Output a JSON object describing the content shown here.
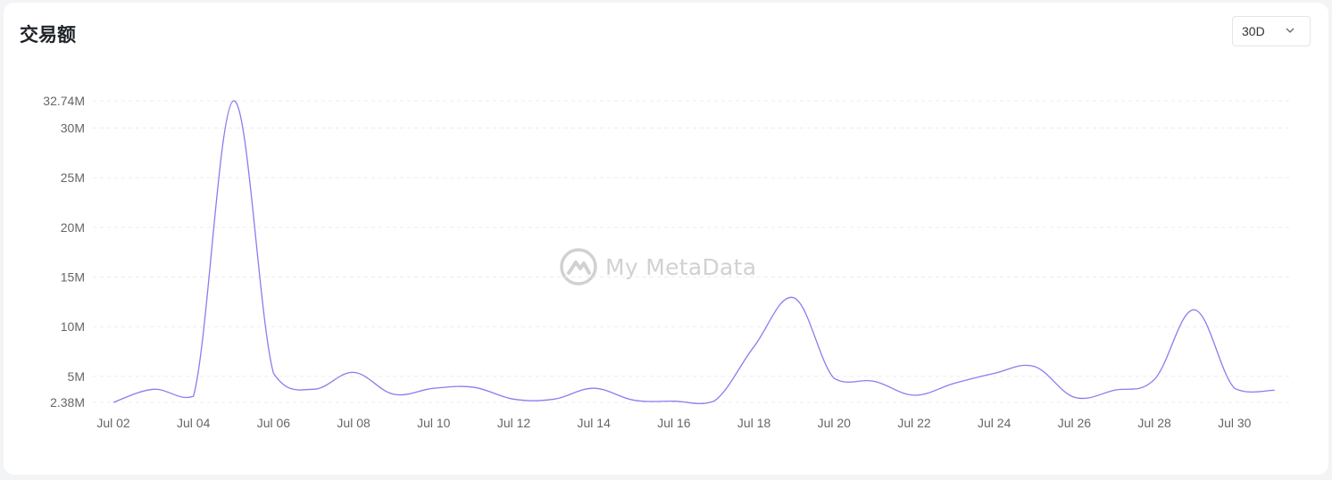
{
  "header": {
    "title": "交易额",
    "period": {
      "selected": "30D"
    }
  },
  "watermark": {
    "text": "My MetaData"
  },
  "colors": {
    "line": "#8b7cf0",
    "grid": "#ececec",
    "tick": "#666666"
  },
  "icons": {
    "dropdown": "chevron-down-icon",
    "watermark_logo": "metadata-logo-icon"
  },
  "chart_data": {
    "type": "line",
    "title": "交易额",
    "xlabel": "",
    "ylabel": "",
    "ylim": [
      2.38,
      32.74
    ],
    "y_ticks": [
      {
        "value": 2.38,
        "label": "2.38M"
      },
      {
        "value": 5,
        "label": "5M"
      },
      {
        "value": 10,
        "label": "10M"
      },
      {
        "value": 15,
        "label": "15M"
      },
      {
        "value": 20,
        "label": "20M"
      },
      {
        "value": 25,
        "label": "25M"
      },
      {
        "value": 30,
        "label": "30M"
      },
      {
        "value": 32.74,
        "label": "32.74M"
      }
    ],
    "x": [
      "Jul 02",
      "Jul 03",
      "Jul 04",
      "Jul 05",
      "Jul 06",
      "Jul 07",
      "Jul 08",
      "Jul 09",
      "Jul 10",
      "Jul 11",
      "Jul 12",
      "Jul 13",
      "Jul 14",
      "Jul 15",
      "Jul 16",
      "Jul 17",
      "Jul 18",
      "Jul 19",
      "Jul 20",
      "Jul 21",
      "Jul 22",
      "Jul 23",
      "Jul 24",
      "Jul 25",
      "Jul 26",
      "Jul 27",
      "Jul 28",
      "Jul 29",
      "Jul 30",
      "Jul 31"
    ],
    "x_tick_labels": [
      "Jul 02",
      "Jul 04",
      "Jul 06",
      "Jul 08",
      "Jul 10",
      "Jul 12",
      "Jul 14",
      "Jul 16",
      "Jul 18",
      "Jul 20",
      "Jul 22",
      "Jul 24",
      "Jul 26",
      "Jul 28",
      "Jul 30"
    ],
    "series": [
      {
        "values": [
          2.38,
          3.7,
          3.0,
          32.74,
          5.3,
          3.7,
          5.4,
          3.2,
          3.8,
          3.9,
          2.7,
          2.7,
          3.8,
          2.6,
          2.5,
          2.5,
          8.0,
          12.9,
          4.8,
          4.5,
          3.1,
          4.3,
          5.3,
          6.0,
          2.9,
          3.6,
          4.7,
          11.7,
          3.8,
          3.6
        ]
      }
    ],
    "grid": true,
    "legend": "none"
  }
}
